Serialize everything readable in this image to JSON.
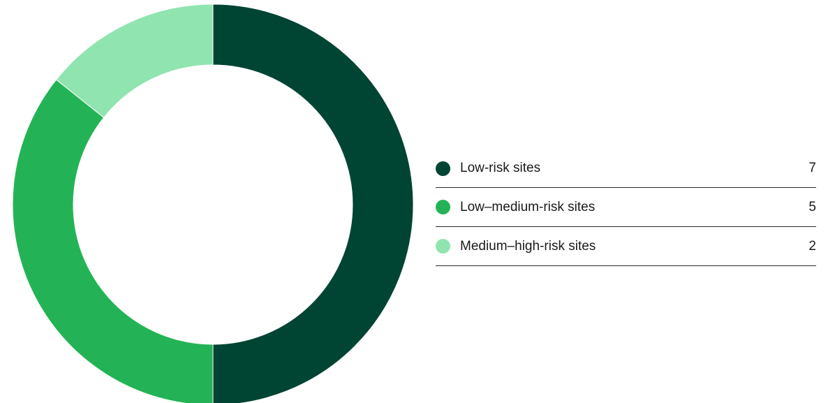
{
  "chart_data": {
    "type": "pie",
    "variant": "donut",
    "categories": [
      "Low-risk sites",
      "Low–medium-risk sites",
      "Medium–high-risk sites"
    ],
    "values": [
      7,
      5,
      2
    ],
    "colors": [
      "#004433",
      "#23b356",
      "#90e4b0"
    ],
    "title": "",
    "legend_placement": "right"
  },
  "legend": {
    "items": [
      {
        "label": "Low-risk sites",
        "value": "7",
        "color": "#004433"
      },
      {
        "label": "Low–medium-risk sites",
        "value": "5",
        "color": "#23b356"
      },
      {
        "label": "Medium–high-risk sites",
        "value": "2",
        "color": "#90e4b0"
      }
    ]
  }
}
